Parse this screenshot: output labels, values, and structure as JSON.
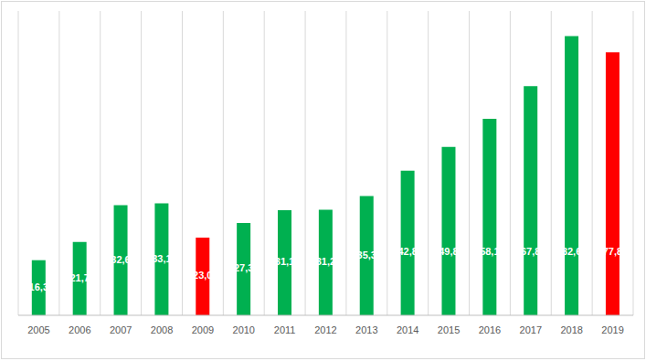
{
  "chart_data": {
    "type": "bar",
    "categories": [
      "2005",
      "2006",
      "2007",
      "2008",
      "2009",
      "2010",
      "2011",
      "2012",
      "2013",
      "2014",
      "2015",
      "2016",
      "2017",
      "2018",
      "2019"
    ],
    "values": [
      16.3,
      21.7,
      32.6,
      33.1,
      23.0,
      27.3,
      31.1,
      31.2,
      35.3,
      42.8,
      49.8,
      58.1,
      67.8,
      82.6,
      77.8
    ],
    "value_labels": [
      "16,3",
      "21,7",
      "32,6",
      "33,1",
      "23,0",
      "27,3",
      "31,1",
      "31,2",
      "35,3",
      "42,8",
      "49,8",
      "58,1",
      "67,8",
      "82,6",
      "77,8"
    ],
    "colors": [
      "#00b050",
      "#00b050",
      "#00b050",
      "#00b050",
      "#ff0000",
      "#00b050",
      "#00b050",
      "#00b050",
      "#00b050",
      "#00b050",
      "#00b050",
      "#00b050",
      "#00b050",
      "#00b050",
      "#ff0000"
    ],
    "ylim": [
      0,
      90
    ],
    "yticks": [
      0,
      90
    ],
    "grid": true,
    "data_labels": true,
    "tick_labels": "x"
  }
}
